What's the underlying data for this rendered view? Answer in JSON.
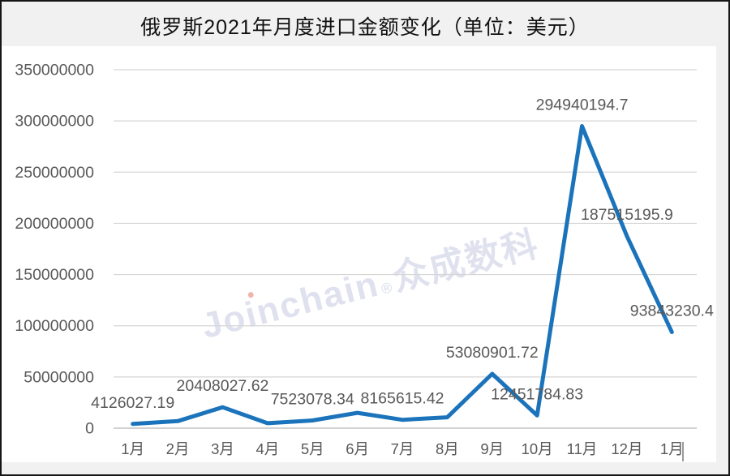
{
  "header": {
    "title": "俄罗斯2021年月度进口金额变化（单位：美元）"
  },
  "watermark": {
    "brand": "Joinchain",
    "registered_mark": "®",
    "cn_name": "众成数科",
    "color": "#dfe2ee",
    "i_dot_color": "#f0b4ab"
  },
  "chart_data": {
    "type": "line",
    "title": "俄罗斯2021年月度进口金额变化（单位：美元）",
    "xlabel": "",
    "ylabel": "",
    "categories": [
      "1月",
      "2月",
      "3月",
      "4月",
      "5月",
      "6月",
      "7月",
      "8月",
      "9月",
      "10月",
      "11月",
      "12月",
      "1月"
    ],
    "values": [
      4126027.19,
      6900000,
      20408027.62,
      4800000,
      7523078.34,
      15000000,
      8165615.42,
      10600000,
      53080901.72,
      12451784.83,
      294940194.7,
      187515195.9,
      93843230.4
    ],
    "point_labels": [
      "4126027.19",
      null,
      "20408027.62",
      null,
      "7523078.34",
      null,
      "8165615.42",
      null,
      "53080901.72",
      "12451784.83",
      "294940194.7",
      "187515195.9",
      "93843230.4"
    ],
    "estimated_indices": [
      1,
      3,
      5,
      7
    ],
    "y_ticks": [
      0,
      50000000,
      100000000,
      150000000,
      200000000,
      250000000,
      300000000,
      350000000
    ],
    "ylim": [
      0,
      350000000
    ],
    "grid": true,
    "legend": false,
    "line_color": "#1b74bb",
    "axis_text_color": "#595959",
    "gridline_color": "#d6d6d6",
    "zero_line_color": "#c2c2c2"
  }
}
